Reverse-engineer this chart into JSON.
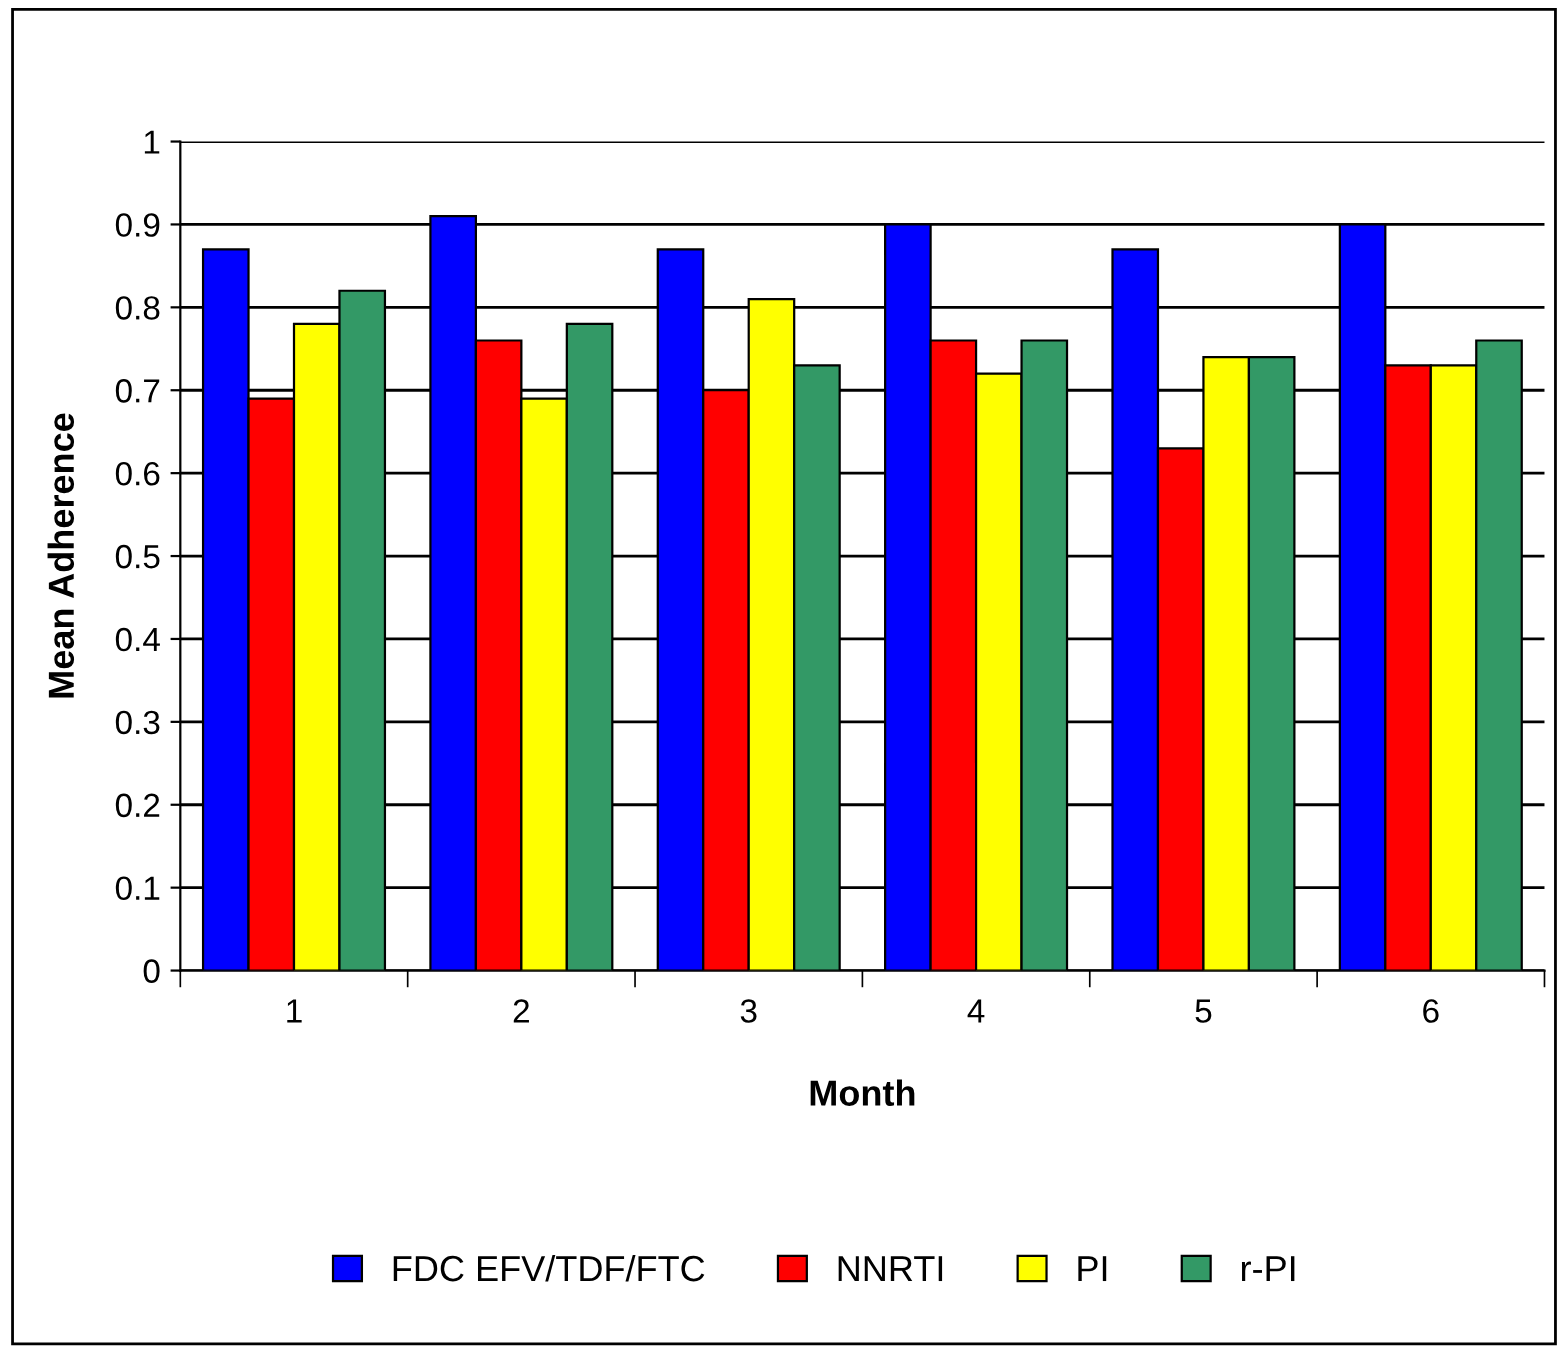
{
  "chart_data": {
    "type": "bar",
    "xlabel": "Month",
    "ylabel": "Mean Adherence",
    "categories": [
      "1",
      "2",
      "3",
      "4",
      "5",
      "6"
    ],
    "series": [
      {
        "name": "FDC EFV/TDF/FTC",
        "color": "#0000ff",
        "values": [
          0.87,
          0.91,
          0.87,
          0.9,
          0.87,
          0.9
        ]
      },
      {
        "name": "NNRTI",
        "color": "#ff0000",
        "values": [
          0.69,
          0.76,
          0.7,
          0.76,
          0.63,
          0.73
        ]
      },
      {
        "name": "PI",
        "color": "#ffff00",
        "values": [
          0.78,
          0.69,
          0.81,
          0.72,
          0.74,
          0.73
        ]
      },
      {
        "name": "r-PI",
        "color": "#339966",
        "values": [
          0.82,
          0.78,
          0.73,
          0.76,
          0.74,
          0.76
        ]
      }
    ],
    "ylim": [
      0,
      1
    ],
    "yticks": [
      0,
      0.1,
      0.2,
      0.3,
      0.4,
      0.5,
      0.6,
      0.7,
      0.8,
      0.9,
      1
    ],
    "grid": "y",
    "legend": "bottom"
  }
}
